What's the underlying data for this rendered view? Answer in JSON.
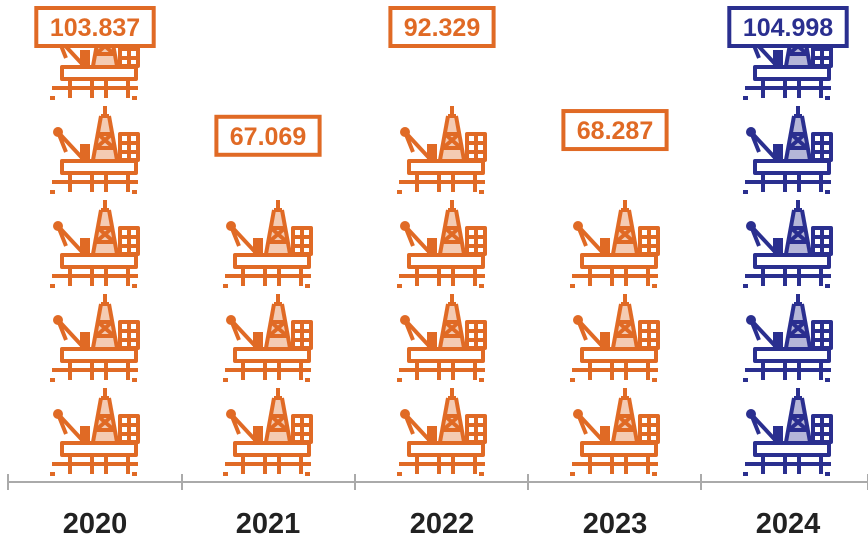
{
  "chart_data": {
    "type": "bar",
    "title": "",
    "xlabel": "",
    "ylabel": "",
    "categories": [
      "2020",
      "2021",
      "2022",
      "2023",
      "2024"
    ],
    "values": [
      103.837,
      67.069,
      92.329,
      68.287,
      104.998
    ],
    "value_labels": [
      "103.837",
      "67.069",
      "92.329",
      "68.287",
      "104.998"
    ],
    "units_per_icon": 20,
    "icon": "oil-rig-icon",
    "grid": false,
    "legend": "none",
    "colors": {
      "default": "#e06a25",
      "highlight": "#2a2f8f",
      "axis": "#aaaaaa",
      "tick_label": "#222222"
    },
    "highlight_index": 4
  }
}
